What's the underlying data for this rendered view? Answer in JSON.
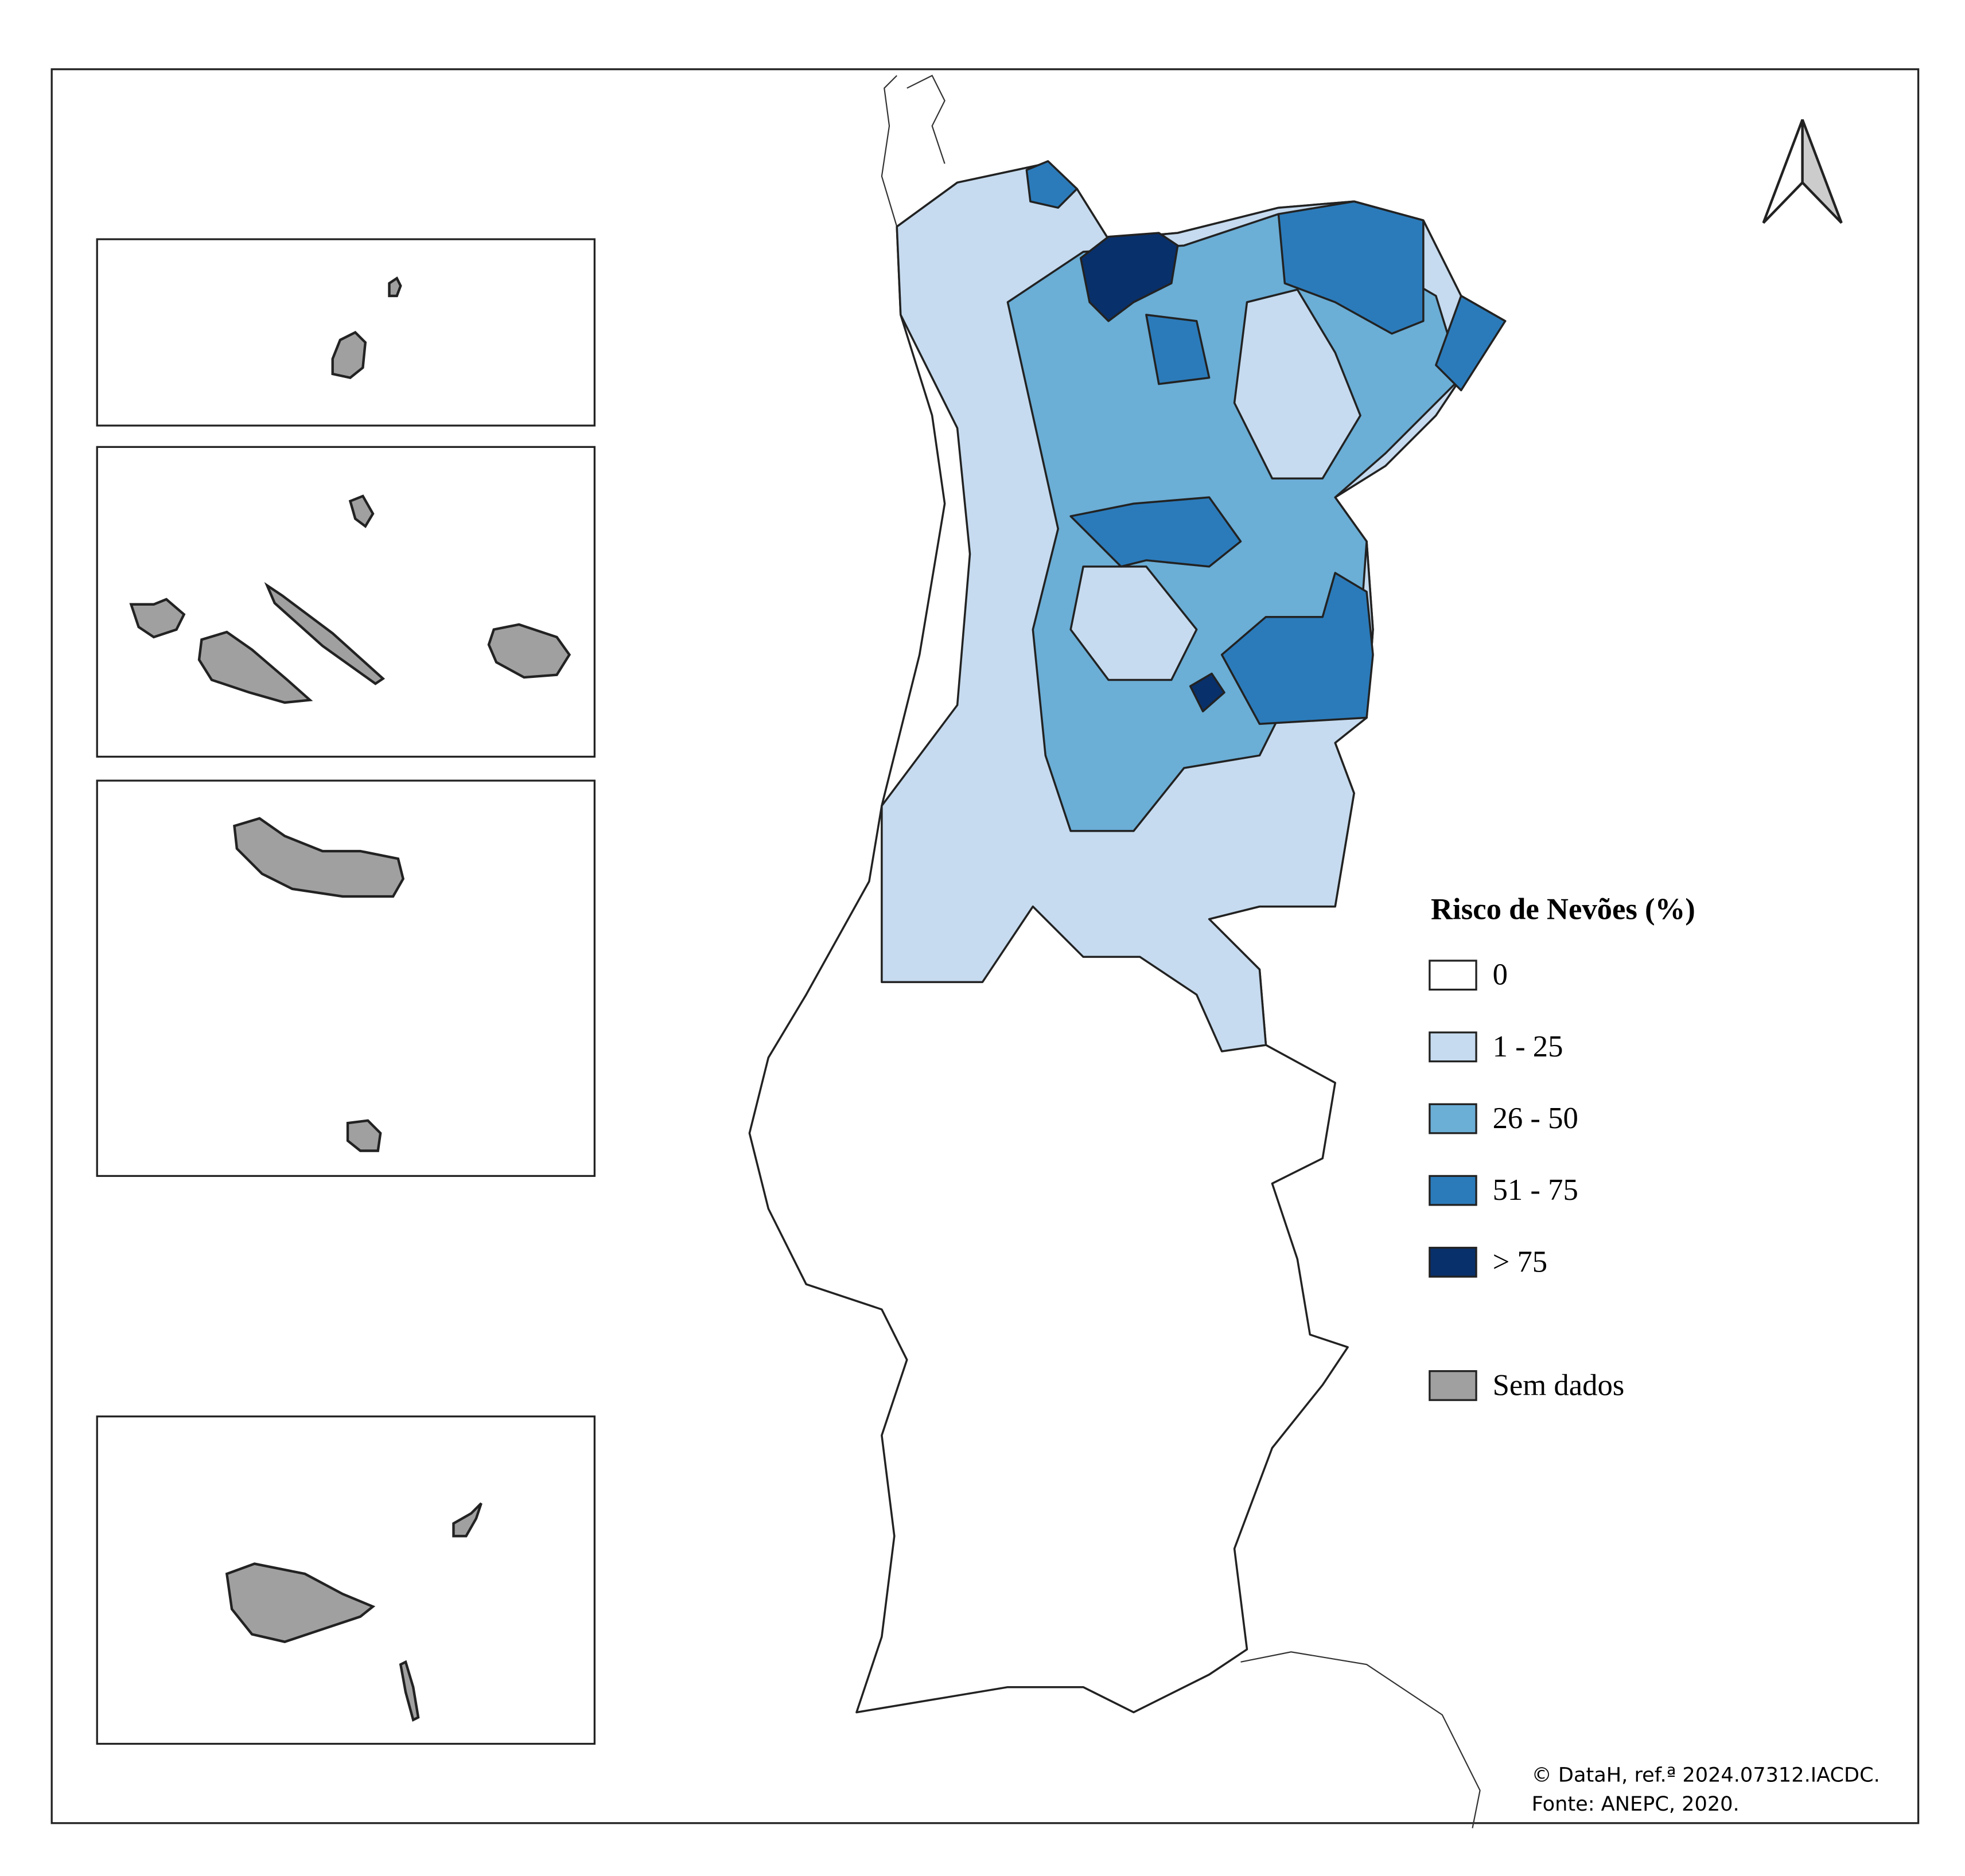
{
  "legend": {
    "title": "Risco de Nevões (%)",
    "items": [
      {
        "label": "0",
        "color": "#ffffff"
      },
      {
        "label": "1 - 25",
        "color": "#c6dbef"
      },
      {
        "label": "26 - 50",
        "color": "#6baed6"
      },
      {
        "label": "51 - 75",
        "color": "#2b7bba"
      },
      {
        "label": "> 75",
        "color": "#08306b"
      }
    ],
    "no_data": {
      "label": "Sem dados",
      "color": "#a0a0a0"
    }
  },
  "credits": [
    "© DataH, ref.ª 2024.07312.IACDC.",
    "Fonte:  ANEPC, 2020."
  ]
}
